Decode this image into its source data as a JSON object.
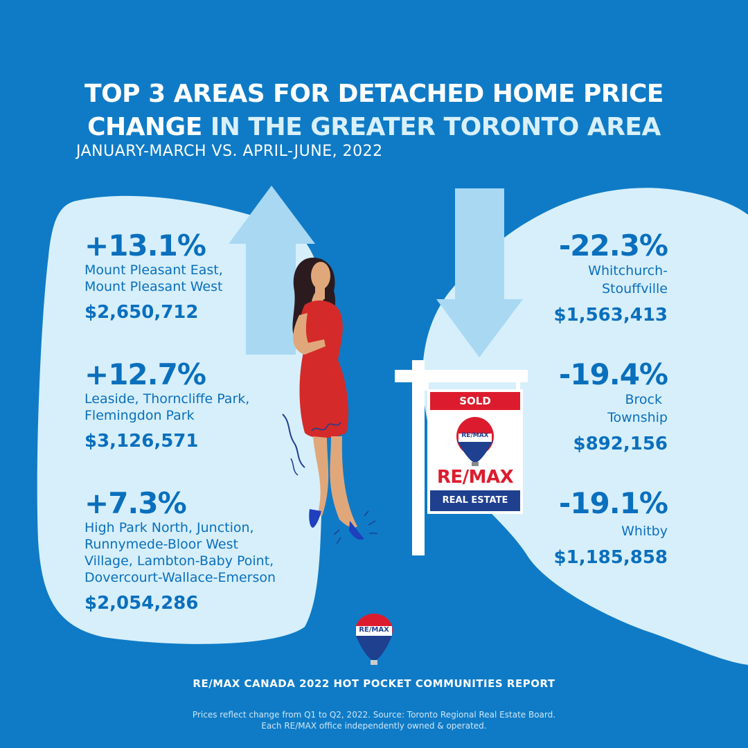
{
  "title": {
    "line1": "TOP 3 AREAS FOR DETACHED HOME PRICE",
    "line2_white": "CHANGE",
    "line2_accent": " IN THE GREATER TORONTO AREA"
  },
  "subtitle": "JANUARY-MARCH VS. APRIL-JUNE, 2022",
  "gains": [
    {
      "pct": "+13.1%",
      "name_lines": [
        "Mount Pleasant East,",
        "Mount Pleasant West"
      ],
      "price": "$2,650,712"
    },
    {
      "pct": "+12.7%",
      "name_lines": [
        "Leaside, Thorncliffe Park,",
        "Flemingdon Park"
      ],
      "price": "$3,126,571"
    },
    {
      "pct": "+7.3%",
      "name_lines": [
        "High Park North, Junction,",
        "Runnymede-Bloor West",
        "Village, Lambton-Baby Point,",
        "Dovercourt-Wallace-Emerson"
      ],
      "price": "$2,054,286"
    }
  ],
  "declines": [
    {
      "pct": "-22.3%",
      "name_lines": [
        "Whitchurch-",
        "Stouffville"
      ],
      "price": "$1,563,413"
    },
    {
      "pct": "-19.4%",
      "name_lines": [
        "Brock",
        "Township"
      ],
      "price": "$892,156"
    },
    {
      "pct": "-19.1%",
      "name_lines": [
        "Whitby"
      ],
      "price": "$1,185,858"
    }
  ],
  "sign": {
    "sold": "SOLD",
    "brand": "RE/MAX",
    "balloon_text": "RE/MAX",
    "bottom": "REAL ESTATE"
  },
  "footer_logo_text": "RE/MAX",
  "report": "RE/MAX CANADA 2022 HOT POCKET COMMUNITIES REPORT",
  "disclaimer": [
    "Prices reflect change from Q1 to Q2, 2022. Source: Toronto Regional Real Estate Board.",
    "Each RE/MAX office independently owned & operated."
  ],
  "colors": {
    "background": "#0f7bc6",
    "blob": "#d6effb",
    "text_blue": "#0a6fbd",
    "arrow": "#a9d8f3",
    "remax_red": "#dc1c2e",
    "remax_blue": "#1f3f8f",
    "dress": "#d42a2a"
  },
  "icons": [
    "up-arrow-icon",
    "down-arrow-icon",
    "woman-illustration",
    "sold-sign-icon",
    "remax-balloon-icon"
  ]
}
